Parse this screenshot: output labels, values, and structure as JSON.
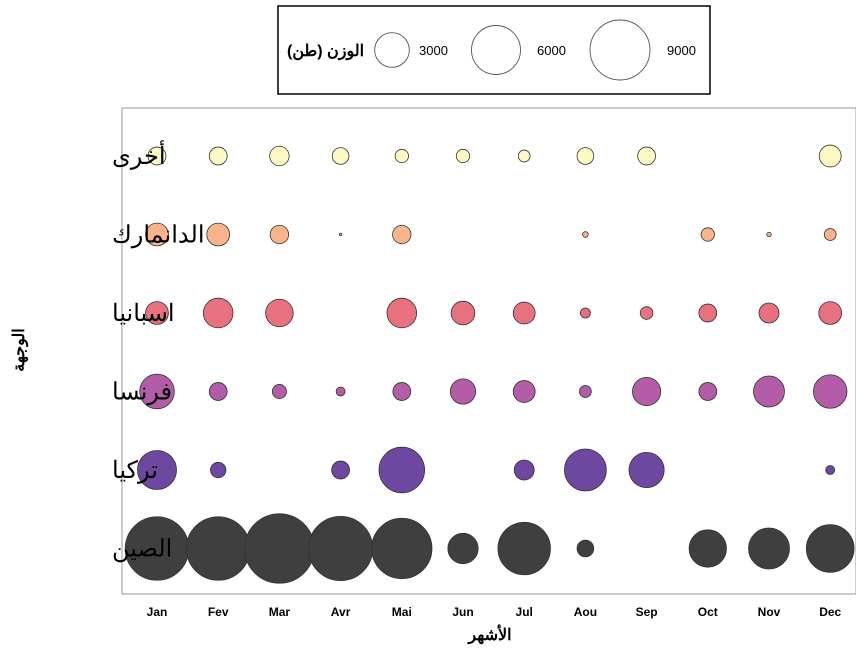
{
  "chart_data": {
    "type": "scatter",
    "title": "",
    "xlabel": "الأشهر",
    "ylabel": "الوجهة",
    "categories": [
      "Jan",
      "Fev",
      "Mar",
      "Avr",
      "Mai",
      "Jun",
      "Jul",
      "Aou",
      "Sep",
      "Oct",
      "Nov",
      "Dec"
    ],
    "rows": [
      "أخرى",
      "الدانمارك",
      "اسبانيا",
      "فرنسا",
      "تركيا",
      "الصين"
    ],
    "size_legend": {
      "title": "الوزن (طن)",
      "values": [
        3000,
        6000,
        9000
      ],
      "labels": [
        "3000",
        "6000",
        "9000"
      ]
    },
    "series": [
      {
        "row": "أخرى",
        "color": "#fdf8c4",
        "values": [
          800,
          800,
          950,
          700,
          450,
          450,
          350,
          700,
          800,
          null,
          null,
          1200
        ]
      },
      {
        "row": "الدانمارك",
        "color": "#f9b48c",
        "values": [
          1300,
          1300,
          850,
          10,
          850,
          null,
          null,
          80,
          null,
          450,
          50,
          350
        ]
      },
      {
        "row": "اسبانيا",
        "color": "#e8717e",
        "values": [
          1300,
          2200,
          1900,
          null,
          2200,
          1400,
          1200,
          250,
          400,
          800,
          1000,
          1300
        ]
      },
      {
        "row": "فرنسا",
        "color": "#b35ca8",
        "values": [
          3000,
          800,
          500,
          200,
          800,
          1600,
          1200,
          350,
          2000,
          800,
          2400,
          2800
        ]
      },
      {
        "row": "تركيا",
        "color": "#6e48a0",
        "values": [
          3800,
          600,
          null,
          800,
          5200,
          null,
          1000,
          4400,
          3100,
          null,
          null,
          200
        ]
      },
      {
        "row": "الصين",
        "color": "#3f3f3f",
        "values": [
          10100,
          10100,
          12100,
          10300,
          9100,
          2300,
          6900,
          700,
          null,
          3500,
          4200,
          5700
        ]
      }
    ]
  }
}
